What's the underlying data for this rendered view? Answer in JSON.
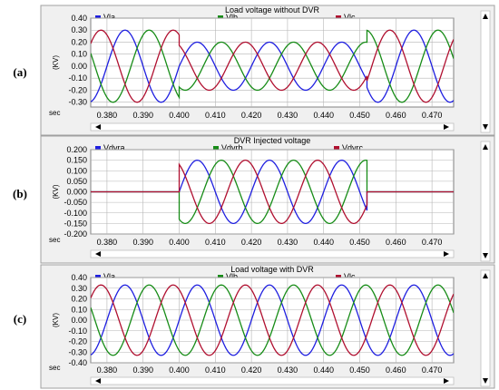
{
  "colors": {
    "phase_a": "#1f1fe0",
    "phase_b": "#178c17",
    "phase_c": "#b01030",
    "plot_bg": "#ffffff",
    "grid": "#b4b4b4",
    "panel_bg": "#f0f0f0",
    "border": "#a0a0a0"
  },
  "chart_data": [
    {
      "type": "line",
      "panel_label": "(a)",
      "title": "Load voltage without DVR",
      "ylabel": "(KV)",
      "xlabel": "sec",
      "xlim": [
        0.3755,
        0.476
      ],
      "ylim": [
        -0.34,
        0.4
      ],
      "xticks": [
        "0.380",
        "0.390",
        "0.400",
        "0.410",
        "0.420",
        "0.430",
        "0.440",
        "0.450",
        "0.460",
        "0.470"
      ],
      "yticks": [
        "0.40",
        "0.30",
        "0.20",
        "0.10",
        "0.00",
        "-0.10",
        "-0.20",
        "-0.30"
      ],
      "scrollbar_icons": [
        "arrow-left-icon",
        "arrow-right-icon",
        "arrow-up-icon",
        "arrow-down-icon"
      ],
      "series": [
        {
          "name": "Vla",
          "color": "#1f1fe0",
          "phase_deg": 0,
          "segments": [
            {
              "x_start": 0.3755,
              "x_end": 0.4,
              "amplitude": 0.3
            },
            {
              "x_start": 0.4,
              "x_end": 0.452,
              "amplitude": 0.2
            },
            {
              "x_start": 0.452,
              "x_end": 0.476,
              "amplitude": 0.3
            }
          ]
        },
        {
          "name": "Vlb",
          "color": "#178c17",
          "phase_deg": -120,
          "segments": [
            {
              "x_start": 0.3755,
              "x_end": 0.4,
              "amplitude": 0.3
            },
            {
              "x_start": 0.4,
              "x_end": 0.452,
              "amplitude": 0.2
            },
            {
              "x_start": 0.452,
              "x_end": 0.476,
              "amplitude": 0.3
            }
          ]
        },
        {
          "name": "Vlc",
          "color": "#b01030",
          "phase_deg": 120,
          "segments": [
            {
              "x_start": 0.3755,
              "x_end": 0.4,
              "amplitude": 0.3
            },
            {
              "x_start": 0.4,
              "x_end": 0.452,
              "amplitude": 0.2
            },
            {
              "x_start": 0.452,
              "x_end": 0.476,
              "amplitude": 0.3
            }
          ]
        }
      ]
    },
    {
      "type": "line",
      "panel_label": "(b)",
      "title": "DVR Injected voltage",
      "ylabel": "(KV)",
      "xlabel": "sec",
      "xlim": [
        0.3755,
        0.476
      ],
      "ylim": [
        -0.2,
        0.2
      ],
      "xticks": [
        "0.380",
        "0.390",
        "0.400",
        "0.410",
        "0.420",
        "0.430",
        "0.440",
        "0.450",
        "0.460",
        "0.470"
      ],
      "yticks": [
        "0.200",
        "0.150",
        "0.100",
        "0.050",
        "0.000",
        "-0.050",
        "-0.100",
        "-0.150",
        "-0.200"
      ],
      "scrollbar_icons": [
        "arrow-left-icon",
        "arrow-right-icon",
        "arrow-up-icon",
        "arrow-down-icon"
      ],
      "series": [
        {
          "name": "Vdvra",
          "color": "#1f1fe0",
          "phase_deg": 0,
          "segments": [
            {
              "x_start": 0.3755,
              "x_end": 0.4,
              "amplitude": 0.0
            },
            {
              "x_start": 0.4,
              "x_end": 0.452,
              "amplitude": 0.15
            },
            {
              "x_start": 0.452,
              "x_end": 0.476,
              "amplitude": 0.0
            }
          ]
        },
        {
          "name": "Vdvrb",
          "color": "#178c17",
          "phase_deg": -120,
          "segments": [
            {
              "x_start": 0.3755,
              "x_end": 0.4,
              "amplitude": 0.0
            },
            {
              "x_start": 0.4,
              "x_end": 0.452,
              "amplitude": 0.15
            },
            {
              "x_start": 0.452,
              "x_end": 0.476,
              "amplitude": 0.0
            }
          ]
        },
        {
          "name": "Vdvrc",
          "color": "#b01030",
          "phase_deg": 120,
          "segments": [
            {
              "x_start": 0.3755,
              "x_end": 0.4,
              "amplitude": 0.0
            },
            {
              "x_start": 0.4,
              "x_end": 0.452,
              "amplitude": 0.15
            },
            {
              "x_start": 0.452,
              "x_end": 0.476,
              "amplitude": 0.0
            }
          ]
        }
      ]
    },
    {
      "type": "line",
      "panel_label": "(c)",
      "title": "Load voltage with DVR",
      "ylabel": "(KV)",
      "xlabel": "sec",
      "xlim": [
        0.3755,
        0.476
      ],
      "ylim": [
        -0.4,
        0.4
      ],
      "xticks": [
        "0.380",
        "0.390",
        "0.400",
        "0.410",
        "0.420",
        "0.430",
        "0.440",
        "0.450",
        "0.460",
        "0.470"
      ],
      "yticks": [
        "0.40",
        "0.30",
        "0.20",
        "0.10",
        "0.00",
        "-0.10",
        "-0.20",
        "-0.30",
        "-0.40"
      ],
      "scrollbar_icons": [
        "arrow-left-icon",
        "arrow-right-icon",
        "arrow-up-icon",
        "arrow-down-icon"
      ],
      "series": [
        {
          "name": "Vla",
          "color": "#1f1fe0",
          "phase_deg": 0,
          "segments": [
            {
              "x_start": 0.3755,
              "x_end": 0.476,
              "amplitude": 0.33
            }
          ]
        },
        {
          "name": "Vlb",
          "color": "#178c17",
          "phase_deg": -120,
          "segments": [
            {
              "x_start": 0.3755,
              "x_end": 0.476,
              "amplitude": 0.33
            }
          ]
        },
        {
          "name": "Vlc",
          "color": "#b01030",
          "phase_deg": 120,
          "segments": [
            {
              "x_start": 0.3755,
              "x_end": 0.476,
              "amplitude": 0.33
            }
          ]
        }
      ]
    }
  ]
}
